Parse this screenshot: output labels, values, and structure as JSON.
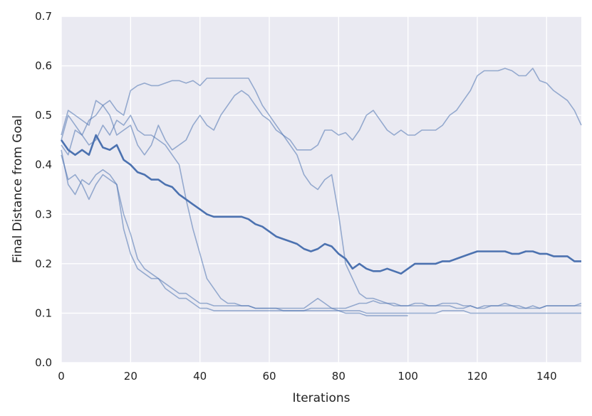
{
  "chart_data": {
    "type": "line",
    "title": "",
    "xlabel": "Iterations",
    "ylabel": "Final Distance from Goal",
    "xlim": [
      0,
      150
    ],
    "ylim": [
      0.0,
      0.7
    ],
    "xticks": [
      0,
      20,
      40,
      60,
      80,
      100,
      120,
      140
    ],
    "yticks": [
      0.0,
      0.1,
      0.2,
      0.3,
      0.4,
      0.5,
      0.6,
      0.7
    ],
    "xtick_labels": [
      "0",
      "20",
      "40",
      "60",
      "80",
      "100",
      "120",
      "140"
    ],
    "ytick_labels": [
      "0.0",
      "0.1",
      "0.2",
      "0.3",
      "0.4",
      "0.5",
      "0.6",
      "0.7"
    ],
    "grid": true,
    "style": {
      "plot_background": "#eaeaf2",
      "grid_color": "#ffffff",
      "line_color": "#4c72b0",
      "faint_opacity": 0.55
    },
    "series": [
      {
        "emphasis": "mean",
        "x": [
          0,
          2,
          4,
          6,
          8,
          10,
          12,
          14,
          16,
          18,
          20,
          22,
          24,
          26,
          28,
          30,
          32,
          34,
          36,
          38,
          40,
          42,
          44,
          46,
          48,
          50,
          52,
          54,
          56,
          58,
          60,
          62,
          64,
          66,
          68,
          70,
          72,
          74,
          76,
          78,
          80,
          82,
          84,
          86,
          88,
          90,
          92,
          94,
          96,
          98,
          100,
          102,
          104,
          106,
          108,
          110,
          112,
          114,
          116,
          118,
          120,
          122,
          124,
          126,
          128,
          130,
          132,
          134,
          136,
          138,
          140,
          142,
          144,
          146,
          148,
          150
        ],
        "values": [
          0.45,
          0.43,
          0.42,
          0.43,
          0.42,
          0.46,
          0.435,
          0.43,
          0.44,
          0.41,
          0.4,
          0.385,
          0.38,
          0.37,
          0.37,
          0.36,
          0.355,
          0.34,
          0.33,
          0.32,
          0.31,
          0.3,
          0.295,
          0.295,
          0.295,
          0.295,
          0.295,
          0.29,
          0.28,
          0.275,
          0.265,
          0.255,
          0.25,
          0.245,
          0.24,
          0.23,
          0.225,
          0.23,
          0.24,
          0.235,
          0.22,
          0.21,
          0.19,
          0.2,
          0.19,
          0.185,
          0.185,
          0.19,
          0.185,
          0.18,
          0.19,
          0.2,
          0.2,
          0.2,
          0.2,
          0.205,
          0.205,
          0.21,
          0.215,
          0.22,
          0.225,
          0.225,
          0.225,
          0.225,
          0.225,
          0.22,
          0.22,
          0.225,
          0.225,
          0.22,
          0.22,
          0.215,
          0.215,
          0.215,
          0.205,
          0.205
        ]
      },
      {
        "emphasis": "run",
        "x": [
          0,
          2,
          4,
          6,
          8,
          10,
          12,
          14,
          16,
          18,
          20,
          22,
          24,
          26,
          28,
          30,
          32,
          34,
          36,
          38,
          40,
          42,
          44,
          46,
          48,
          50,
          52,
          54,
          56,
          58,
          60,
          62,
          64,
          66,
          68,
          70,
          72,
          74,
          76,
          78,
          80,
          82,
          84,
          86,
          88,
          90,
          92,
          94,
          96,
          98,
          100,
          102,
          104,
          106,
          108,
          110,
          112,
          114,
          116,
          118,
          120,
          122,
          124,
          126,
          128,
          130,
          132,
          134,
          136,
          138,
          140,
          142,
          144,
          146,
          148,
          150
        ],
        "values": [
          0.45,
          0.5,
          0.48,
          0.46,
          0.49,
          0.5,
          0.52,
          0.53,
          0.51,
          0.5,
          0.55,
          0.56,
          0.565,
          0.56,
          0.56,
          0.565,
          0.57,
          0.57,
          0.565,
          0.57,
          0.56,
          0.575,
          0.575,
          0.575,
          0.575,
          0.575,
          0.575,
          0.575,
          0.55,
          0.52,
          0.5,
          0.48,
          0.46,
          0.45,
          0.43,
          0.43,
          0.43,
          0.44,
          0.47,
          0.47,
          0.46,
          0.465,
          0.45,
          0.47,
          0.5,
          0.51,
          0.49,
          0.47,
          0.46,
          0.47,
          0.46,
          0.46,
          0.47,
          0.47,
          0.47,
          0.48,
          0.5,
          0.51,
          0.53,
          0.55,
          0.58,
          0.59,
          0.59,
          0.59,
          0.595,
          0.59,
          0.58,
          0.58,
          0.595,
          0.57,
          0.565,
          0.55,
          0.54,
          0.53,
          0.51,
          0.48
        ]
      },
      {
        "emphasis": "run",
        "x": [
          0,
          2,
          4,
          6,
          8,
          10,
          12,
          14,
          16,
          18,
          20,
          22,
          24,
          26,
          28,
          30,
          32,
          34,
          36,
          38,
          40,
          42,
          44,
          46,
          48,
          50,
          52,
          54,
          56,
          58,
          60,
          62,
          64,
          66,
          68,
          70,
          72,
          74,
          76,
          78,
          80,
          82,
          84,
          86,
          88,
          90,
          92,
          94,
          96,
          98,
          100,
          102,
          104,
          106,
          108,
          110,
          112,
          114,
          116,
          118,
          120,
          122,
          124,
          126,
          128,
          130,
          132,
          134,
          136,
          138,
          140,
          142,
          144,
          146,
          148,
          150
        ],
        "values": [
          0.46,
          0.51,
          0.5,
          0.49,
          0.48,
          0.53,
          0.52,
          0.5,
          0.46,
          0.47,
          0.48,
          0.44,
          0.42,
          0.44,
          0.48,
          0.45,
          0.43,
          0.44,
          0.45,
          0.48,
          0.5,
          0.48,
          0.47,
          0.5,
          0.52,
          0.54,
          0.55,
          0.54,
          0.52,
          0.5,
          0.49,
          0.47,
          0.46,
          0.44,
          0.42,
          0.38,
          0.36,
          0.35,
          0.37,
          0.38,
          0.3,
          0.2,
          0.17,
          0.14,
          0.13,
          0.13,
          0.125,
          0.12,
          0.12,
          0.115,
          0.115,
          0.12,
          0.12,
          0.115,
          0.115,
          0.115,
          0.115,
          0.11,
          0.11,
          0.115,
          0.11,
          0.11,
          0.115,
          0.115,
          0.115,
          0.115,
          0.11,
          0.11,
          0.11,
          0.11,
          0.115,
          0.115,
          0.115,
          0.115,
          0.115,
          0.12
        ]
      },
      {
        "emphasis": "run",
        "x": [
          0,
          2,
          4,
          6,
          8,
          10,
          12,
          14,
          16,
          18,
          20,
          22,
          24,
          26,
          28,
          30,
          32,
          34,
          36,
          38,
          40,
          42,
          44,
          46,
          48,
          50,
          52,
          54,
          56,
          58,
          60,
          62,
          64,
          66,
          68,
          70,
          72,
          74,
          76,
          78,
          80,
          82,
          84,
          86,
          88,
          90,
          92,
          94,
          96,
          98,
          100
        ],
        "values": [
          0.44,
          0.42,
          0.47,
          0.46,
          0.44,
          0.45,
          0.48,
          0.46,
          0.49,
          0.48,
          0.5,
          0.47,
          0.46,
          0.46,
          0.45,
          0.44,
          0.42,
          0.4,
          0.33,
          0.27,
          0.22,
          0.17,
          0.15,
          0.13,
          0.12,
          0.12,
          0.115,
          0.115,
          0.11,
          0.11,
          0.11,
          0.11,
          0.105,
          0.105,
          0.105,
          0.105,
          0.105,
          0.105,
          0.105,
          0.105,
          0.105,
          0.1,
          0.1,
          0.1,
          0.095,
          0.095,
          0.095,
          0.095,
          0.095,
          0.095,
          0.095
        ]
      },
      {
        "emphasis": "run",
        "x": [
          0,
          2,
          4,
          6,
          8,
          10,
          12,
          14,
          16,
          18,
          20,
          22,
          24,
          26,
          28,
          30,
          32,
          34,
          36,
          38,
          40,
          42,
          44,
          46,
          48,
          50,
          52,
          54,
          56,
          58,
          60,
          62,
          64,
          66,
          68,
          70,
          72,
          74,
          76,
          78,
          80,
          82,
          84,
          86,
          88,
          90,
          92,
          94,
          96,
          98,
          100,
          102,
          104,
          106,
          108,
          110,
          112,
          114,
          116,
          118,
          120,
          122,
          124,
          126,
          128,
          130,
          132,
          134,
          136,
          138,
          140,
          142,
          144,
          146,
          148,
          150
        ],
        "values": [
          0.42,
          0.37,
          0.38,
          0.36,
          0.33,
          0.36,
          0.38,
          0.37,
          0.36,
          0.3,
          0.26,
          0.21,
          0.19,
          0.18,
          0.17,
          0.15,
          0.14,
          0.13,
          0.13,
          0.12,
          0.11,
          0.11,
          0.105,
          0.105,
          0.105,
          0.105,
          0.105,
          0.105,
          0.105,
          0.105,
          0.105,
          0.105,
          0.105,
          0.105,
          0.105,
          0.105,
          0.11,
          0.11,
          0.11,
          0.11,
          0.105,
          0.105,
          0.105,
          0.105,
          0.1,
          0.1,
          0.1,
          0.1,
          0.1,
          0.1,
          0.1,
          0.1,
          0.1,
          0.1,
          0.1,
          0.105,
          0.105,
          0.105,
          0.105,
          0.1,
          0.1,
          0.1,
          0.1,
          0.1,
          0.1,
          0.1,
          0.1,
          0.1,
          0.1,
          0.1,
          0.1,
          0.1,
          0.1,
          0.1,
          0.1,
          0.1
        ]
      },
      {
        "emphasis": "run",
        "x": [
          0,
          2,
          4,
          6,
          8,
          10,
          12,
          14,
          16,
          18,
          20,
          22,
          24,
          26,
          28,
          30,
          32,
          34,
          36,
          38,
          40,
          42,
          44,
          46,
          48,
          50,
          52,
          54,
          56,
          58,
          60,
          62,
          64,
          66,
          68,
          70,
          72,
          74,
          76,
          78,
          80,
          82,
          84,
          86,
          88,
          90,
          92,
          94,
          96,
          98,
          100,
          102,
          104,
          106,
          108,
          110,
          112,
          114,
          116,
          118,
          120,
          122,
          124,
          126,
          128,
          130,
          132,
          134,
          136,
          138,
          140,
          142,
          144,
          146,
          148,
          150
        ],
        "values": [
          0.43,
          0.36,
          0.34,
          0.37,
          0.36,
          0.38,
          0.39,
          0.38,
          0.36,
          0.27,
          0.22,
          0.19,
          0.18,
          0.17,
          0.17,
          0.16,
          0.15,
          0.14,
          0.14,
          0.13,
          0.12,
          0.12,
          0.115,
          0.115,
          0.115,
          0.115,
          0.115,
          0.115,
          0.11,
          0.11,
          0.11,
          0.11,
          0.11,
          0.11,
          0.11,
          0.11,
          0.12,
          0.13,
          0.12,
          0.11,
          0.11,
          0.11,
          0.115,
          0.12,
          0.12,
          0.125,
          0.12,
          0.12,
          0.115,
          0.115,
          0.115,
          0.115,
          0.115,
          0.115,
          0.115,
          0.12,
          0.12,
          0.12,
          0.115,
          0.115,
          0.11,
          0.115,
          0.115,
          0.115,
          0.12,
          0.115,
          0.115,
          0.11,
          0.115,
          0.11,
          0.115,
          0.115,
          0.115,
          0.115,
          0.115,
          0.115
        ]
      }
    ]
  }
}
